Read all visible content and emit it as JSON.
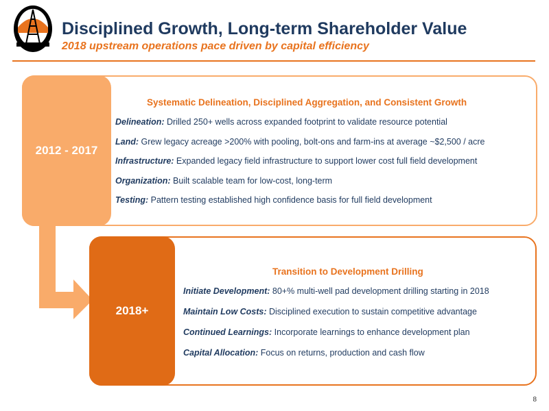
{
  "header": {
    "title": "Disciplined Growth, Long-term Shareholder Value",
    "subtitle": "2018 upstream operations pace driven by capital efficiency"
  },
  "colors": {
    "navy": "#1f3a5f",
    "orange": "#e8731e",
    "light_orange": "#f9ab6a",
    "dark_orange": "#e06b16"
  },
  "logo": {
    "icon": "oil-derrick-icon"
  },
  "panel1": {
    "period": "2012 - 2017",
    "heading": "Systematic Delineation, Disciplined Aggregation, and Consistent Growth",
    "bullets": [
      {
        "lead": "Delineation:",
        "text": " Drilled 250+ wells across expanded footprint to validate resource potential"
      },
      {
        "lead": "Land:",
        "text": " Grew legacy acreage >200% with pooling, bolt-ons and farm-ins at average ~$2,500 / acre"
      },
      {
        "lead": "Infrastructure:",
        "text": " Expanded legacy field infrastructure to support lower cost full field development"
      },
      {
        "lead": "Organization:",
        "text": " Built scalable team for low-cost, long-term"
      },
      {
        "lead": "Testing:",
        "text": " Pattern testing established high confidence basis for full field development"
      }
    ]
  },
  "panel2": {
    "period": "2018+",
    "heading": "Transition to Development Drilling",
    "bullets": [
      {
        "lead": "Initiate Development:",
        "text": " 80+% multi-well pad development drilling starting in 2018"
      },
      {
        "lead": "Maintain Low Costs:",
        "text": " Disciplined execution to sustain competitive advantage"
      },
      {
        "lead": "Continued Learnings:",
        "text": " Incorporate learnings to enhance development plan"
      },
      {
        "lead": "Capital Allocation:",
        "text": " Focus on returns, production and cash flow"
      }
    ]
  },
  "page_number": "8"
}
